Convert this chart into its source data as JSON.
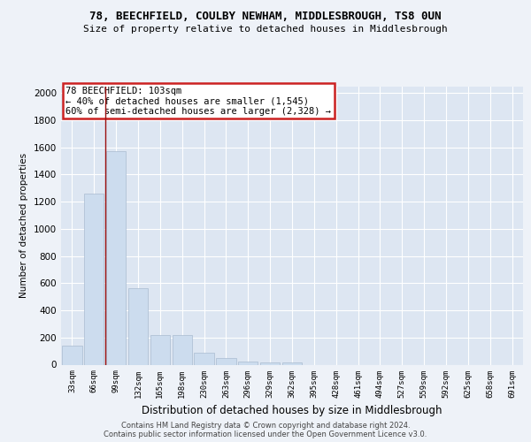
{
  "title1": "78, BEECHFIELD, COULBY NEWHAM, MIDDLESBROUGH, TS8 0UN",
  "title2": "Size of property relative to detached houses in Middlesbrough",
  "xlabel": "Distribution of detached houses by size in Middlesbrough",
  "ylabel": "Number of detached properties",
  "categories": [
    "33sqm",
    "66sqm",
    "99sqm",
    "132sqm",
    "165sqm",
    "198sqm",
    "230sqm",
    "263sqm",
    "296sqm",
    "329sqm",
    "362sqm",
    "395sqm",
    "428sqm",
    "461sqm",
    "494sqm",
    "527sqm",
    "559sqm",
    "592sqm",
    "625sqm",
    "658sqm",
    "691sqm"
  ],
  "values": [
    140,
    1260,
    1570,
    560,
    215,
    215,
    90,
    50,
    25,
    15,
    18,
    0,
    0,
    0,
    0,
    0,
    0,
    0,
    0,
    0,
    0
  ],
  "bar_color": "#ccdcee",
  "bar_edge_color": "#aabbd0",
  "vline_x_index": 1.5,
  "vline_color": "#9b1010",
  "annotation_text": "78 BEECHFIELD: 103sqm\n← 40% of detached houses are smaller (1,545)\n60% of semi-detached houses are larger (2,328) →",
  "annotation_box_color": "#ffffff",
  "annotation_box_edge": "#cc2222",
  "ylim": [
    0,
    2050
  ],
  "yticks": [
    0,
    200,
    400,
    600,
    800,
    1000,
    1200,
    1400,
    1600,
    1800,
    2000
  ],
  "footer1": "Contains HM Land Registry data © Crown copyright and database right 2024.",
  "footer2": "Contains public sector information licensed under the Open Government Licence v3.0.",
  "bg_color": "#eef2f8",
  "plot_bg_color": "#dde6f2",
  "grid_color": "#ffffff"
}
